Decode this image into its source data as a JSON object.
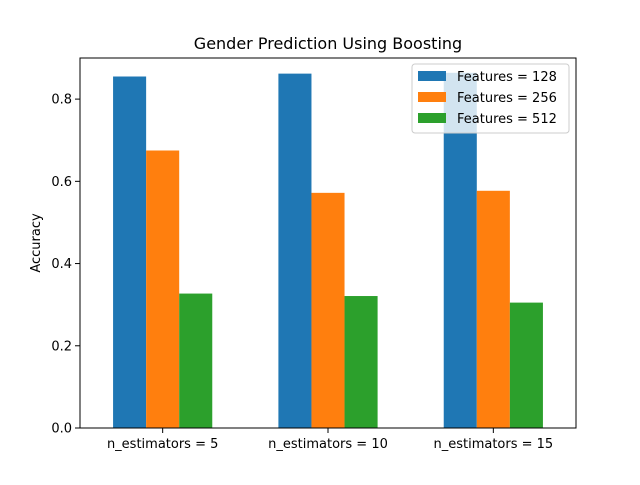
{
  "chart_data": {
    "type": "bar",
    "title": "Gender Prediction Using Boosting",
    "xlabel": "",
    "ylabel": "Accuracy",
    "ylim": [
      0,
      0.9
    ],
    "yticks": [
      0.0,
      0.2,
      0.4,
      0.6,
      0.8
    ],
    "ytick_labels": [
      "0.0",
      "0.2",
      "0.4",
      "0.6",
      "0.8"
    ],
    "categories": [
      "n_estimators = 5",
      "n_estimators = 10",
      "n_estimators = 15"
    ],
    "series": [
      {
        "name": "Features = 128",
        "color": "#1f77b4",
        "values": [
          0.855,
          0.862,
          0.864
        ]
      },
      {
        "name": "Features = 256",
        "color": "#ff7f0e",
        "values": [
          0.675,
          0.572,
          0.577
        ]
      },
      {
        "name": "Features = 512",
        "color": "#2ca02c",
        "values": [
          0.327,
          0.321,
          0.305
        ]
      }
    ],
    "legend_position": "top-right",
    "grid": false
  }
}
